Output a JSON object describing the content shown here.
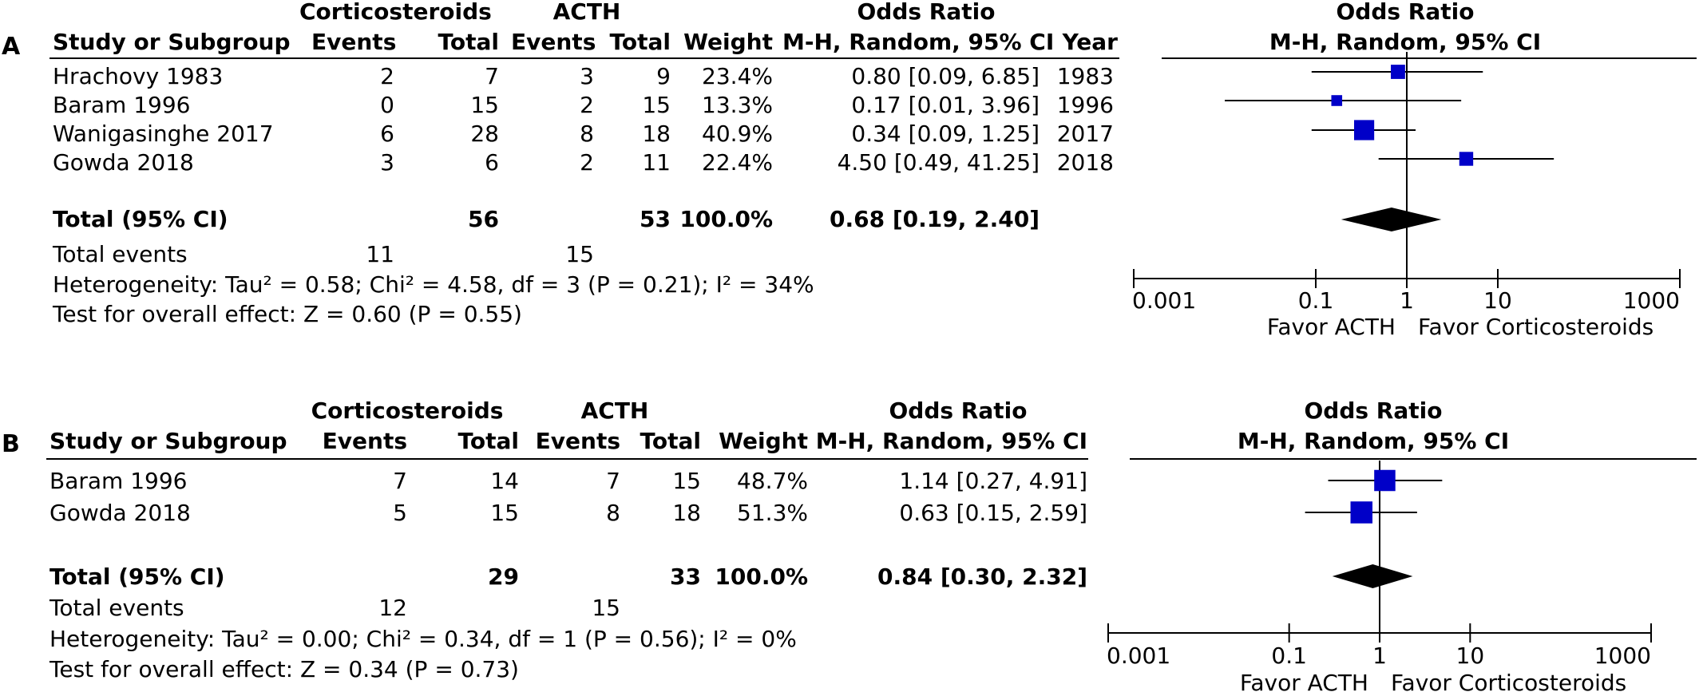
{
  "chart_data": [
    {
      "panel_label": "A",
      "type": "table",
      "group_headers": {
        "experimental": "Corticosteroids",
        "control": "ACTH",
        "or_text": "Odds Ratio",
        "or_plot": "Odds Ratio"
      },
      "columns": {
        "study": "Study or Subgroup",
        "exp_events": "Events",
        "exp_total": "Total",
        "ctl_events": "Events",
        "ctl_total": "Total",
        "weight": "Weight",
        "or_method": "M-H, Random, 95% CI",
        "year": "Year",
        "plot_method": "M-H, Random, 95% CI"
      },
      "studies": [
        {
          "name": "Hrachovy 1983",
          "exp_events": "2",
          "exp_total": "7",
          "ctl_events": "3",
          "ctl_total": "9",
          "weight": "23.4%",
          "ci_text": "0.80 [0.09, 6.85]",
          "year": "1983",
          "or": 0.8,
          "lower": 0.09,
          "upper": 6.85,
          "w": 23.4
        },
        {
          "name": "Baram 1996",
          "exp_events": "0",
          "exp_total": "15",
          "ctl_events": "2",
          "ctl_total": "15",
          "weight": "13.3%",
          "ci_text": "0.17 [0.01, 3.96]",
          "year": "1996",
          "or": 0.17,
          "lower": 0.01,
          "upper": 3.96,
          "w": 13.3
        },
        {
          "name": "Wanigasinghe 2017",
          "exp_events": "6",
          "exp_total": "28",
          "ctl_events": "8",
          "ctl_total": "18",
          "weight": "40.9%",
          "ci_text": "0.34 [0.09, 1.25]",
          "year": "2017",
          "or": 0.34,
          "lower": 0.09,
          "upper": 1.25,
          "w": 40.9
        },
        {
          "name": "Gowda 2018",
          "exp_events": "3",
          "exp_total": "6",
          "ctl_events": "2",
          "ctl_total": "11",
          "weight": "22.4%",
          "ci_text": "4.50 [0.49, 41.25]",
          "year": "2018",
          "or": 4.5,
          "lower": 0.49,
          "upper": 41.25,
          "w": 22.4
        }
      ],
      "total": {
        "label": "Total (95% CI)",
        "exp_total": "56",
        "ctl_total": "53",
        "weight": "100.0%",
        "ci_text": "0.68 [0.19, 2.40]",
        "or": 0.68,
        "lower": 0.19,
        "upper": 2.4
      },
      "total_events": {
        "label": "Total events",
        "exp": "11",
        "ctl": "15"
      },
      "heterogeneity": "Heterogeneity: Tau² = 0.58; Chi² = 4.58, df = 3 (P = 0.21); I² = 34%",
      "overall_effect": "Test for overall effect: Z = 0.60 (P = 0.55)",
      "axis": {
        "scale": "log",
        "xlim": [
          0.001,
          1000
        ],
        "ticks": [
          0.001,
          0.1,
          1,
          10,
          1000
        ],
        "tick_labels": [
          "0.001",
          "0.1",
          "1",
          "10",
          "1000"
        ],
        "reference": 1
      },
      "favor_left": "Favor ACTH",
      "favor_right": "Favor Corticosteroids",
      "marker_color": "#0000c8"
    },
    {
      "panel_label": "B",
      "type": "table",
      "group_headers": {
        "experimental": "Corticosteroids",
        "control": "ACTH",
        "or_text": "Odds Ratio",
        "or_plot": "Odds Ratio"
      },
      "columns": {
        "study": "Study or Subgroup",
        "exp_events": "Events",
        "exp_total": "Total",
        "ctl_events": "Events",
        "ctl_total": "Total",
        "weight": "Weight",
        "or_method": "M-H, Random, 95% CI",
        "year": "",
        "plot_method": "M-H, Random, 95% CI"
      },
      "studies": [
        {
          "name": "Baram 1996",
          "exp_events": "7",
          "exp_total": "14",
          "ctl_events": "7",
          "ctl_total": "15",
          "weight": "48.7%",
          "ci_text": "1.14 [0.27, 4.91]",
          "year": "",
          "or": 1.14,
          "lower": 0.27,
          "upper": 4.91,
          "w": 48.7
        },
        {
          "name": "Gowda 2018",
          "exp_events": "5",
          "exp_total": "15",
          "ctl_events": "8",
          "ctl_total": "18",
          "weight": "51.3%",
          "ci_text": "0.63 [0.15, 2.59]",
          "year": "",
          "or": 0.63,
          "lower": 0.15,
          "upper": 2.59,
          "w": 51.3
        }
      ],
      "total": {
        "label": "Total (95% CI)",
        "exp_total": "29",
        "ctl_total": "33",
        "weight": "100.0%",
        "ci_text": "0.84 [0.30, 2.32]",
        "or": 0.84,
        "lower": 0.3,
        "upper": 2.32
      },
      "total_events": {
        "label": "Total events",
        "exp": "12",
        "ctl": "15"
      },
      "heterogeneity": "Heterogeneity: Tau² = 0.00; Chi² = 0.34, df = 1 (P = 0.56); I² = 0%",
      "overall_effect": "Test for overall effect: Z = 0.34 (P = 0.73)",
      "axis": {
        "scale": "log",
        "xlim": [
          0.001,
          1000
        ],
        "ticks": [
          0.001,
          0.1,
          1,
          10,
          1000
        ],
        "tick_labels": [
          "0.001",
          "0.1",
          "1",
          "10",
          "1000"
        ],
        "reference": 1
      },
      "favor_left": "Favor ACTH",
      "favor_right": "Favor Corticosteroids",
      "marker_color": "#0000c8"
    }
  ]
}
